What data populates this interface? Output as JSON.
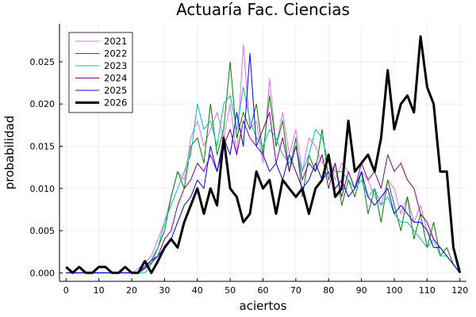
{
  "chart_data": {
    "type": "line",
    "title": "Actuaría Fac. Ciencias",
    "xlabel": "aciertos",
    "ylabel": "probabilidad",
    "xlim": [
      -2,
      122
    ],
    "ylim": [
      -0.001,
      0.0295
    ],
    "xticks": [
      "0",
      "10",
      "20",
      "30",
      "40",
      "50",
      "60",
      "70",
      "80",
      "90",
      "100",
      "110",
      "120"
    ],
    "yticks": [
      "0.000",
      "0.005",
      "0.010",
      "0.015",
      "0.020",
      "0.025"
    ],
    "grid": true,
    "legend_position": "top-left",
    "series": [
      {
        "name": "2021",
        "color": "#e26ef1",
        "x": [
          0,
          2,
          4,
          6,
          8,
          10,
          12,
          14,
          16,
          18,
          20,
          22,
          24,
          26,
          28,
          30,
          32,
          34,
          36,
          38,
          40,
          42,
          44,
          46,
          48,
          50,
          52,
          54,
          56,
          58,
          60,
          62,
          64,
          66,
          68,
          70,
          72,
          74,
          76,
          78,
          80,
          82,
          84,
          86,
          88,
          90,
          92,
          94,
          96,
          98,
          100,
          102,
          104,
          106,
          108,
          110,
          112,
          114,
          116,
          118,
          120
        ],
        "values": [
          0,
          0,
          0,
          0,
          0,
          0,
          0,
          0,
          0,
          0,
          0,
          0.0005,
          0.0012,
          0.002,
          0.004,
          0.006,
          0.009,
          0.012,
          0.011,
          0.016,
          0.018,
          0.015,
          0.017,
          0.019,
          0.016,
          0.02,
          0.014,
          0.027,
          0.017,
          0.018,
          0.013,
          0.023,
          0.015,
          0.019,
          0.014,
          0.017,
          0.012,
          0.016,
          0.015,
          0.013,
          0.014,
          0.011,
          0.013,
          0.012,
          0.01,
          0.012,
          0.011,
          0.009,
          0.008,
          0.011,
          0.01,
          0.007,
          0.009,
          0.006,
          0.008,
          0.005,
          0.004,
          0.003,
          0.002,
          0.001,
          0
        ]
      },
      {
        "name": "2022",
        "color": "#008000",
        "x": [
          0,
          2,
          4,
          6,
          8,
          10,
          12,
          14,
          16,
          18,
          20,
          22,
          24,
          26,
          28,
          30,
          32,
          34,
          36,
          38,
          40,
          42,
          44,
          46,
          48,
          50,
          52,
          54,
          56,
          58,
          60,
          62,
          64,
          66,
          68,
          70,
          72,
          74,
          76,
          78,
          80,
          82,
          84,
          86,
          88,
          90,
          92,
          94,
          96,
          98,
          100,
          102,
          104,
          106,
          108,
          110,
          112,
          114,
          116,
          118,
          120
        ],
        "values": [
          0,
          0,
          0,
          0,
          0,
          0,
          0,
          0,
          0,
          0,
          0,
          0,
          0.0006,
          0.0015,
          0.003,
          0.005,
          0.009,
          0.012,
          0.01,
          0.015,
          0.016,
          0.013,
          0.02,
          0.014,
          0.017,
          0.025,
          0.016,
          0.019,
          0.017,
          0.02,
          0.014,
          0.021,
          0.015,
          0.018,
          0.012,
          0.016,
          0.009,
          0.014,
          0.012,
          0.017,
          0.011,
          0.013,
          0.008,
          0.011,
          0.009,
          0.012,
          0.007,
          0.01,
          0.006,
          0.011,
          0.008,
          0.005,
          0.009,
          0.004,
          0.007,
          0.003,
          0.006,
          0.002,
          0.003,
          0.001,
          0
        ]
      },
      {
        "name": "2023",
        "color": "#00bfc4",
        "x": [
          0,
          2,
          4,
          6,
          8,
          10,
          12,
          14,
          16,
          18,
          20,
          22,
          24,
          26,
          28,
          30,
          32,
          34,
          36,
          38,
          40,
          42,
          44,
          46,
          48,
          50,
          52,
          54,
          56,
          58,
          60,
          62,
          64,
          66,
          68,
          70,
          72,
          74,
          76,
          78,
          80,
          82,
          84,
          86,
          88,
          90,
          92,
          94,
          96,
          98,
          100,
          102,
          104,
          106,
          108,
          110,
          112,
          114,
          116,
          118,
          120
        ],
        "values": [
          0,
          0,
          0,
          0,
          0,
          0,
          0,
          0,
          0,
          0,
          0,
          0,
          0,
          0.001,
          0.003,
          0.006,
          0.008,
          0.01,
          0.012,
          0.014,
          0.02,
          0.017,
          0.018,
          0.015,
          0.02,
          0.021,
          0.017,
          0.022,
          0.018,
          0.016,
          0.015,
          0.017,
          0.016,
          0.014,
          0.013,
          0.015,
          0.012,
          0.014,
          0.017,
          0.016,
          0.013,
          0.012,
          0.012,
          0.011,
          0.01,
          0.011,
          0.009,
          0.01,
          0.008,
          0.009,
          0.007,
          0.006,
          0.006,
          0.005,
          0.004,
          0.003,
          0.004,
          0.002,
          0.002,
          0.001,
          0
        ]
      },
      {
        "name": "2024",
        "color": "#800080",
        "x": [
          0,
          2,
          4,
          6,
          8,
          10,
          12,
          14,
          16,
          18,
          20,
          22,
          24,
          26,
          28,
          30,
          32,
          34,
          36,
          38,
          40,
          42,
          44,
          46,
          48,
          50,
          52,
          54,
          56,
          58,
          60,
          62,
          64,
          66,
          68,
          70,
          72,
          74,
          76,
          78,
          80,
          82,
          84,
          86,
          88,
          90,
          92,
          94,
          96,
          98,
          100,
          102,
          104,
          106,
          108,
          110,
          112,
          114,
          116,
          118,
          120
        ],
        "values": [
          0,
          0,
          0,
          0,
          0,
          0,
          0,
          0,
          0,
          0,
          0,
          0,
          0.0005,
          0.0012,
          0.002,
          0.004,
          0.005,
          0.008,
          0.01,
          0.011,
          0.013,
          0.012,
          0.014,
          0.012,
          0.015,
          0.017,
          0.014,
          0.018,
          0.016,
          0.015,
          0.017,
          0.019,
          0.013,
          0.016,
          0.012,
          0.015,
          0.011,
          0.013,
          0.012,
          0.014,
          0.01,
          0.013,
          0.009,
          0.012,
          0.01,
          0.013,
          0.011,
          0.012,
          0.01,
          0.014,
          0.012,
          0.013,
          0.011,
          0.01,
          0.007,
          0.006,
          0.004,
          0.003,
          0.002,
          0.001,
          0
        ]
      },
      {
        "name": "2025",
        "color": "#0000ff",
        "x": [
          0,
          2,
          4,
          6,
          8,
          10,
          12,
          14,
          16,
          18,
          20,
          22,
          24,
          26,
          28,
          30,
          32,
          34,
          36,
          38,
          40,
          42,
          44,
          46,
          48,
          50,
          52,
          54,
          56,
          58,
          60,
          62,
          64,
          66,
          68,
          70,
          72,
          74,
          76,
          78,
          80,
          82,
          84,
          86,
          88,
          90,
          92,
          94,
          96,
          98,
          100,
          102,
          104,
          106,
          108,
          110,
          112,
          114,
          116,
          118,
          120
        ],
        "values": [
          0,
          0,
          0,
          0,
          0,
          0,
          0,
          0,
          0,
          0,
          0,
          0,
          0.0008,
          0.0015,
          0.002,
          0.003,
          0.004,
          0.006,
          0.008,
          0.009,
          0.011,
          0.01,
          0.015,
          0.012,
          0.016,
          0.014,
          0.019,
          0.015,
          0.026,
          0.015,
          0.014,
          0.012,
          0.013,
          0.011,
          0.014,
          0.012,
          0.01,
          0.011,
          0.013,
          0.011,
          0.012,
          0.01,
          0.011,
          0.009,
          0.01,
          0.012,
          0.009,
          0.008,
          0.009,
          0.01,
          0.007,
          0.008,
          0.007,
          0.006,
          0.006,
          0.005,
          0.003,
          0.003,
          0.002,
          0.001,
          0
        ]
      },
      {
        "name": "2026",
        "color": "#000000",
        "x": [
          0,
          2,
          4,
          6,
          8,
          10,
          12,
          14,
          16,
          18,
          20,
          22,
          24,
          26,
          28,
          30,
          32,
          34,
          36,
          38,
          40,
          42,
          44,
          46,
          48,
          50,
          52,
          54,
          56,
          58,
          60,
          62,
          64,
          66,
          68,
          70,
          72,
          74,
          76,
          78,
          80,
          82,
          84,
          86,
          88,
          90,
          92,
          94,
          96,
          98,
          100,
          102,
          104,
          106,
          108,
          110,
          112,
          114,
          116,
          118,
          120
        ],
        "values": [
          0.0007,
          0,
          0.0007,
          0,
          0,
          0.0007,
          0.0007,
          0,
          0,
          0.0007,
          0,
          0,
          0.0014,
          0,
          0.0014,
          0.003,
          0.004,
          0.003,
          0.006,
          0.008,
          0.01,
          0.007,
          0.01,
          0.008,
          0.016,
          0.01,
          0.009,
          0.006,
          0.007,
          0.012,
          0.01,
          0.011,
          0.007,
          0.011,
          0.01,
          0.009,
          0.01,
          0.007,
          0.01,
          0.011,
          0.014,
          0.009,
          0.01,
          0.018,
          0.012,
          0.013,
          0.014,
          0.012,
          0.016,
          0.024,
          0.017,
          0.02,
          0.021,
          0.019,
          0.028,
          0.022,
          0.02,
          0.012,
          0.012,
          0.003,
          0
        ]
      }
    ]
  }
}
